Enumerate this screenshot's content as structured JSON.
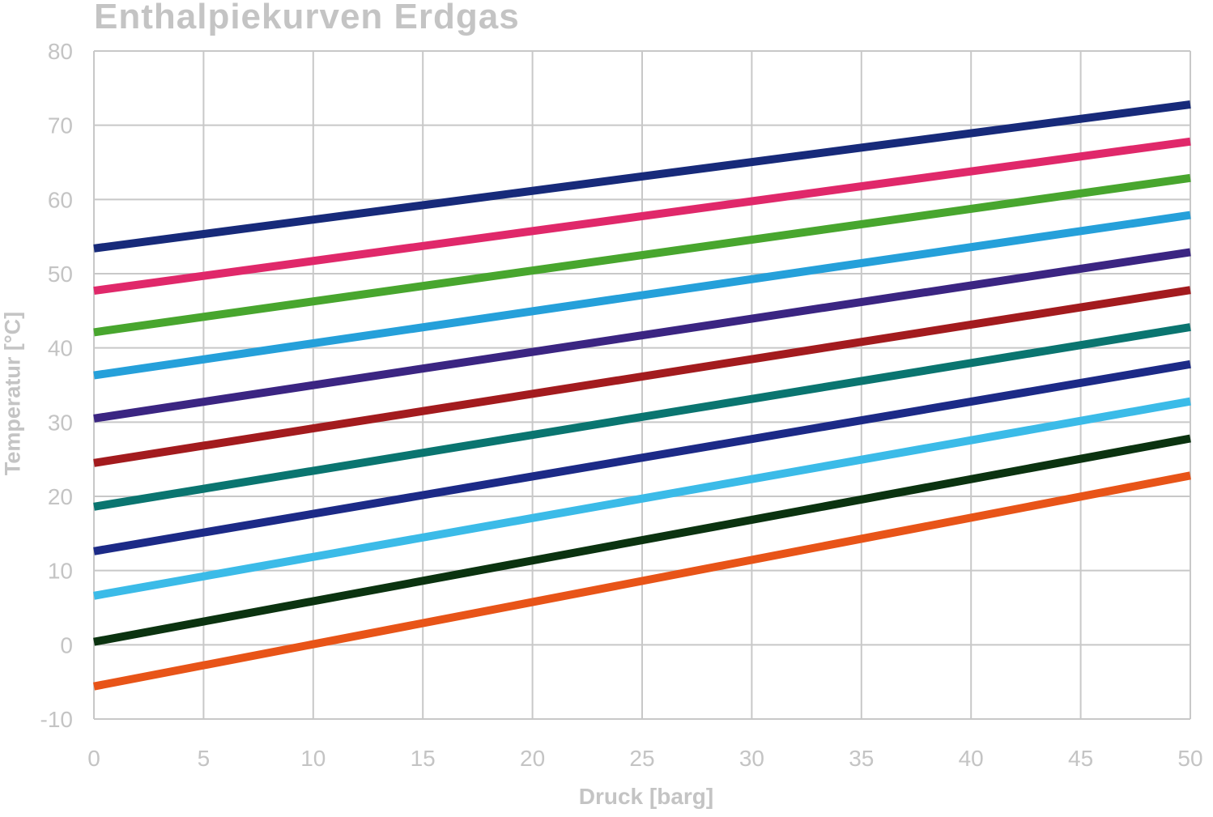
{
  "chart_data": {
    "type": "line",
    "title": "Enthalpiekurven Erdgas",
    "xlabel": "Druck [barg]",
    "ylabel": "Temperatur [°C]",
    "xlim": [
      0,
      50
    ],
    "ylim": [
      -10,
      80
    ],
    "xticks": [
      "0",
      "5",
      "10",
      "15",
      "20",
      "25",
      "30",
      "35",
      "40",
      "45",
      "50"
    ],
    "yticks": [
      "80",
      "70",
      "60",
      "50",
      "40",
      "30",
      "20",
      "10",
      "0",
      "-10"
    ],
    "grid": true,
    "legend": "none",
    "x": [
      0,
      50
    ],
    "series": [
      {
        "color": "#172a7a",
        "values": [
          53.4,
          72.8
        ]
      },
      {
        "color": "#e0286a",
        "values": [
          47.7,
          67.8
        ]
      },
      {
        "color": "#48a62e",
        "values": [
          42.1,
          62.9
        ]
      },
      {
        "color": "#25a0da",
        "values": [
          36.3,
          57.9
        ]
      },
      {
        "color": "#3b2582",
        "values": [
          30.5,
          52.9
        ]
      },
      {
        "color": "#a31b1e",
        "values": [
          24.5,
          47.8
        ]
      },
      {
        "color": "#0a7570",
        "values": [
          18.6,
          42.8
        ]
      },
      {
        "color": "#1c2a87",
        "values": [
          12.6,
          37.8
        ]
      },
      {
        "color": "#3bbbe8",
        "values": [
          6.6,
          32.8
        ]
      },
      {
        "color": "#0b3310",
        "values": [
          0.4,
          27.8
        ]
      },
      {
        "color": "#e85418",
        "values": [
          -5.6,
          22.8
        ]
      }
    ]
  }
}
